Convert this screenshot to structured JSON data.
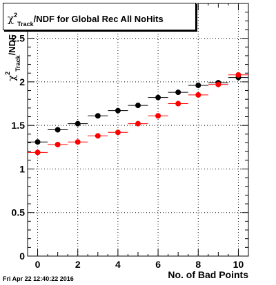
{
  "title": {
    "chi": "χ",
    "sup": "2",
    "sub": "Track",
    "rest": "/NDF for Global Rec All NoHits"
  },
  "ylabel": {
    "chi": "χ",
    "sup": "2",
    "sub": "Track",
    "rest": "/NDF"
  },
  "timestamp": "Fri Apr 22 12:40:22 2016",
  "colors": {
    "series_black": "#000000",
    "series_red": "#ff0000",
    "grid": "#000000"
  },
  "chart_data": {
    "type": "scatter",
    "title": "χ²_Track/NDF for Global Rec All NoHits",
    "xlabel": "No. of Bad Points",
    "ylabel": "χ²_Track/NDF",
    "xlim": [
      -0.5,
      10.5
    ],
    "ylim": [
      0,
      2.9
    ],
    "x_ticks": [
      0,
      2,
      4,
      6,
      8,
      10
    ],
    "y_ticks": [
      0,
      0.5,
      1,
      1.5,
      2,
      2.5
    ],
    "grid": true,
    "x_bin_halfwidth": 0.5,
    "series": [
      {
        "color": "#000000",
        "x": [
          0,
          1,
          2,
          3,
          4,
          5,
          6,
          7,
          8,
          9,
          10
        ],
        "y": [
          1.31,
          1.45,
          1.52,
          1.61,
          1.67,
          1.73,
          1.82,
          1.88,
          1.96,
          1.99,
          2.05
        ]
      },
      {
        "color": "#ff0000",
        "x": [
          0,
          1,
          2,
          3,
          4,
          5,
          6,
          7,
          8,
          9,
          10
        ],
        "y": [
          1.19,
          1.28,
          1.31,
          1.38,
          1.42,
          1.52,
          1.61,
          1.75,
          1.85,
          1.97,
          2.08
        ]
      }
    ]
  }
}
